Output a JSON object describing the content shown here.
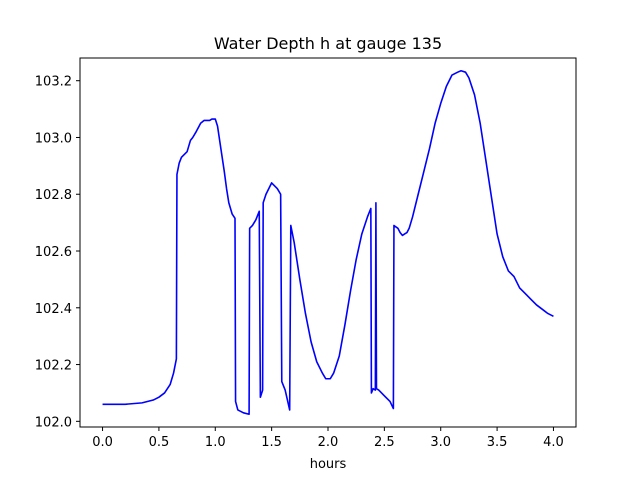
{
  "chart_data": {
    "type": "line",
    "title": "Water Depth h at gauge 135",
    "xlabel": "hours",
    "ylabel": "",
    "xlim": [
      -0.2,
      4.2
    ],
    "ylim": [
      101.98,
      103.28
    ],
    "grid": false,
    "x_ticks": [
      0.0,
      0.5,
      1.0,
      1.5,
      2.0,
      2.5,
      3.0,
      3.5,
      4.0
    ],
    "x_tick_labels": [
      "0.0",
      "0.5",
      "1.0",
      "1.5",
      "2.0",
      "2.5",
      "3.0",
      "3.5",
      "4.0"
    ],
    "y_ticks": [
      102.0,
      102.2,
      102.4,
      102.6,
      102.8,
      103.0,
      103.2
    ],
    "y_tick_labels": [
      "102.0",
      "102.2",
      "102.4",
      "102.6",
      "102.8",
      "103.0",
      "103.2"
    ],
    "series": [
      {
        "name": "gauge 135",
        "color": "#0000ff",
        "points": [
          [
            0.0,
            102.06
          ],
          [
            0.2,
            102.06
          ],
          [
            0.35,
            102.065
          ],
          [
            0.45,
            102.075
          ],
          [
            0.5,
            102.085
          ],
          [
            0.55,
            102.1
          ],
          [
            0.6,
            102.13
          ],
          [
            0.63,
            102.17
          ],
          [
            0.655,
            102.22
          ],
          [
            0.66,
            102.87
          ],
          [
            0.68,
            102.91
          ],
          [
            0.7,
            102.93
          ],
          [
            0.75,
            102.95
          ],
          [
            0.78,
            102.99
          ],
          [
            0.8,
            103.0
          ],
          [
            0.83,
            103.02
          ],
          [
            0.87,
            103.05
          ],
          [
            0.9,
            103.06
          ],
          [
            0.95,
            103.06
          ],
          [
            0.97,
            103.065
          ],
          [
            1.0,
            103.065
          ],
          [
            1.02,
            103.04
          ],
          [
            1.05,
            102.96
          ],
          [
            1.08,
            102.88
          ],
          [
            1.1,
            102.82
          ],
          [
            1.12,
            102.77
          ],
          [
            1.15,
            102.73
          ],
          [
            1.175,
            102.715
          ],
          [
            1.18,
            102.07
          ],
          [
            1.2,
            102.04
          ],
          [
            1.25,
            102.03
          ],
          [
            1.3,
            102.025
          ],
          [
            1.305,
            102.68
          ],
          [
            1.33,
            102.69
          ],
          [
            1.36,
            102.71
          ],
          [
            1.39,
            102.74
          ],
          [
            1.4,
            102.085
          ],
          [
            1.42,
            102.11
          ],
          [
            1.425,
            102.77
          ],
          [
            1.45,
            102.8
          ],
          [
            1.5,
            102.84
          ],
          [
            1.55,
            102.82
          ],
          [
            1.58,
            102.8
          ],
          [
            1.59,
            102.14
          ],
          [
            1.62,
            102.11
          ],
          [
            1.66,
            102.04
          ],
          [
            1.67,
            102.69
          ],
          [
            1.7,
            102.63
          ],
          [
            1.75,
            102.5
          ],
          [
            1.8,
            102.38
          ],
          [
            1.85,
            102.28
          ],
          [
            1.9,
            102.21
          ],
          [
            1.95,
            102.17
          ],
          [
            1.98,
            102.15
          ],
          [
            2.02,
            102.15
          ],
          [
            2.05,
            102.17
          ],
          [
            2.1,
            102.23
          ],
          [
            2.15,
            102.34
          ],
          [
            2.2,
            102.46
          ],
          [
            2.25,
            102.57
          ],
          [
            2.3,
            102.66
          ],
          [
            2.35,
            102.72
          ],
          [
            2.38,
            102.75
          ],
          [
            2.385,
            102.1
          ],
          [
            2.4,
            102.115
          ],
          [
            2.42,
            102.11
          ],
          [
            2.425,
            102.77
          ],
          [
            2.43,
            102.115
          ],
          [
            2.45,
            102.11
          ],
          [
            2.5,
            102.09
          ],
          [
            2.55,
            102.07
          ],
          [
            2.58,
            102.045
          ],
          [
            2.585,
            102.69
          ],
          [
            2.62,
            102.68
          ],
          [
            2.64,
            102.665
          ],
          [
            2.66,
            102.655
          ],
          [
            2.68,
            102.66
          ],
          [
            2.7,
            102.665
          ],
          [
            2.72,
            102.68
          ],
          [
            2.75,
            102.72
          ],
          [
            2.8,
            102.8
          ],
          [
            2.85,
            102.88
          ],
          [
            2.9,
            102.96
          ],
          [
            2.95,
            103.05
          ],
          [
            3.0,
            103.12
          ],
          [
            3.05,
            103.18
          ],
          [
            3.1,
            103.22
          ],
          [
            3.15,
            103.23
          ],
          [
            3.18,
            103.235
          ],
          [
            3.22,
            103.23
          ],
          [
            3.25,
            103.21
          ],
          [
            3.3,
            103.15
          ],
          [
            3.35,
            103.05
          ],
          [
            3.4,
            102.92
          ],
          [
            3.45,
            102.79
          ],
          [
            3.5,
            102.66
          ],
          [
            3.55,
            102.58
          ],
          [
            3.6,
            102.53
          ],
          [
            3.65,
            102.51
          ],
          [
            3.7,
            102.47
          ],
          [
            3.75,
            102.45
          ],
          [
            3.8,
            102.43
          ],
          [
            3.85,
            102.41
          ],
          [
            3.9,
            102.395
          ],
          [
            3.95,
            102.38
          ],
          [
            4.0,
            102.37
          ]
        ]
      }
    ]
  }
}
